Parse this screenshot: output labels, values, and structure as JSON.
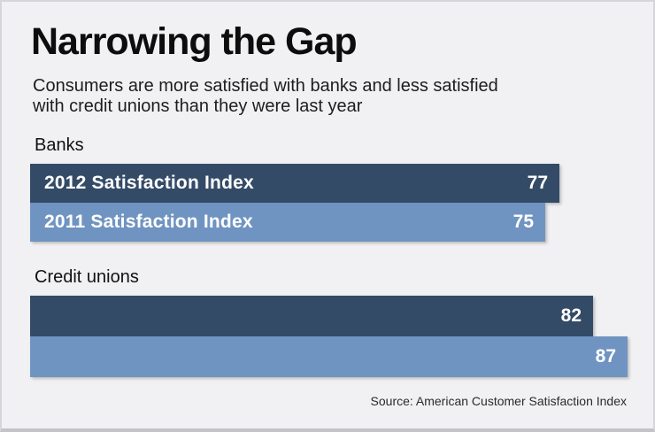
{
  "chart_data": {
    "type": "bar",
    "orientation": "horizontal",
    "title": "Narrowing the Gap",
    "subtitle_lines": [
      "Consumers are more satisfied with banks and less satisfied",
      "with credit unions than they were last year"
    ],
    "categories": [
      "Banks",
      "Credit unions"
    ],
    "series": [
      {
        "name": "2012 Satisfaction Index",
        "values": [
          77,
          82
        ],
        "color": "#344b68"
      },
      {
        "name": "2011 Satisfaction Index",
        "values": [
          75,
          87
        ],
        "color": "#7094c1"
      }
    ],
    "inner_labels": [
      [
        "2012 Satisfaction Index",
        "2011 Satisfaction Index"
      ],
      [
        "",
        ""
      ]
    ],
    "value_labels": [
      [
        "77",
        "75"
      ],
      [
        "82",
        "87"
      ]
    ],
    "xlim": [
      0,
      95
    ],
    "legend": "none",
    "grid": false,
    "source": "Source: American Customer Satisfaction Index",
    "colors": {
      "background": "#f1f1f3",
      "border": "#d6d6da",
      "series_2012": "#344b68",
      "series_2011": "#7094c1",
      "bar_text": "#ffffff",
      "text": "#0d0d0d"
    }
  }
}
